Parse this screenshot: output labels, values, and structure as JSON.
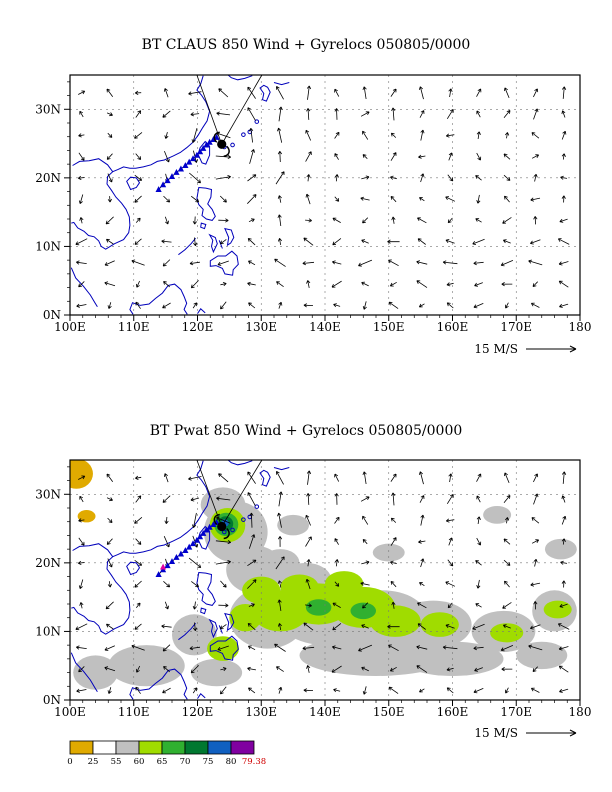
{
  "charts": [
    {
      "title": "BT CLAUS 850 Wind + Gyrelocs 050805/0000",
      "x_tick_labels": [
        "100E",
        "110E",
        "120E",
        "130E",
        "140E",
        "150E",
        "160E",
        "170E",
        "180"
      ],
      "y_tick_labels": [
        "0N",
        "10N",
        "20N",
        "30N"
      ],
      "scale_label": "15 M/S",
      "storm_lonlat": [
        123.8,
        24.9
      ],
      "track_lonlat": [
        [
          113.9,
          18.3
        ],
        [
          114.6,
          19.0
        ],
        [
          115.3,
          19.6
        ],
        [
          116.0,
          20.2
        ],
        [
          116.7,
          20.8
        ],
        [
          117.4,
          21.3
        ],
        [
          118.1,
          21.8
        ],
        [
          118.7,
          22.3
        ],
        [
          119.3,
          22.8
        ],
        [
          119.9,
          23.3
        ],
        [
          120.4,
          23.8
        ],
        [
          120.9,
          24.3
        ],
        [
          121.4,
          24.8
        ],
        [
          121.9,
          25.2
        ],
        [
          122.5,
          25.6
        ],
        [
          123.0,
          25.9
        ]
      ],
      "marker_color": "#0000CC",
      "has_shading": false
    },
    {
      "title": "BT Pwat 850 Wind + Gyrelocs 050805/0000",
      "x_tick_labels": [
        "100E",
        "110E",
        "120E",
        "130E",
        "140E",
        "150E",
        "160E",
        "170E",
        "180"
      ],
      "y_tick_labels": [
        "0N",
        "10N",
        "20N",
        "30N"
      ],
      "scale_label": "15 M/S",
      "storm_lonlat": [
        123.8,
        25.3
      ],
      "track_lonlat": [
        [
          113.9,
          18.3
        ],
        [
          114.6,
          19.0
        ],
        [
          115.3,
          19.6
        ],
        [
          116.0,
          20.2
        ],
        [
          116.7,
          20.8
        ],
        [
          117.4,
          21.3
        ],
        [
          118.1,
          21.8
        ],
        [
          118.7,
          22.3
        ],
        [
          119.3,
          22.8
        ],
        [
          119.9,
          23.3
        ],
        [
          120.4,
          23.8
        ],
        [
          120.9,
          24.3
        ],
        [
          121.4,
          24.8
        ],
        [
          121.9,
          25.2
        ],
        [
          122.5,
          25.6
        ],
        [
          123.0,
          25.9
        ]
      ],
      "marker_color": "#0000CC",
      "gyre_marker_lonlat": [
        114.6,
        19.4
      ],
      "gyre_marker_color": "#E000A0",
      "has_shading": true,
      "colorbar": {
        "labels": [
          "0",
          "25",
          "55",
          "60",
          "65",
          "70",
          "75",
          "80",
          "79.38"
        ],
        "colors": [
          "#E0AA00",
          "#FFFFFF",
          "#C0C0C0",
          "#A0DC00",
          "#30B030",
          "#007830",
          "#1060C0",
          "#8000A0"
        ],
        "max_label_color": "#D00000"
      }
    }
  ],
  "chart_data": [
    {
      "type": "vector-map",
      "title": "BT CLAUS 850 Wind + Gyrelocs 050805/0000",
      "valid_datetime_label": "050805/0000",
      "x_axis": {
        "ticks": [
          "100E",
          "110E",
          "120E",
          "130E",
          "140E",
          "150E",
          "160E",
          "170E",
          "180"
        ],
        "range_deg_east": [
          100,
          180
        ]
      },
      "y_axis": {
        "ticks": [
          "0N",
          "10N",
          "20N",
          "30N"
        ],
        "range_deg_north": [
          0,
          35
        ]
      },
      "reference_vector_label": "15 M/S",
      "storm_position_lon_lat": [
        123.8,
        24.9
      ],
      "best_track_lon_lat": [
        [
          113.9,
          18.3
        ],
        [
          114.6,
          19.0
        ],
        [
          115.3,
          19.6
        ],
        [
          116.0,
          20.2
        ],
        [
          116.7,
          20.8
        ],
        [
          117.4,
          21.3
        ],
        [
          118.1,
          21.8
        ],
        [
          118.7,
          22.3
        ],
        [
          119.3,
          22.8
        ],
        [
          119.9,
          23.3
        ],
        [
          120.4,
          23.8
        ],
        [
          120.9,
          24.3
        ],
        [
          121.4,
          24.8
        ],
        [
          121.9,
          25.2
        ],
        [
          122.5,
          25.6
        ],
        [
          123.0,
          25.9
        ]
      ],
      "graticule": "dashed lines every 10 degrees",
      "coastline_color": "#0000BB"
    },
    {
      "type": "vector-map",
      "title": "BT Pwat 850 Wind + Gyrelocs 050805/0000",
      "valid_datetime_label": "050805/0000",
      "x_axis": {
        "ticks": [
          "100E",
          "110E",
          "120E",
          "130E",
          "140E",
          "150E",
          "160E",
          "170E",
          "180"
        ],
        "range_deg_east": [
          100,
          180
        ]
      },
      "y_axis": {
        "ticks": [
          "0N",
          "10N",
          "20N",
          "30N"
        ],
        "range_deg_north": [
          0,
          35
        ]
      },
      "reference_vector_label": "15 M/S",
      "storm_position_lon_lat": [
        123.8,
        25.3
      ],
      "best_track_lon_lat": [
        [
          113.9,
          18.3
        ],
        [
          114.6,
          19.0
        ],
        [
          115.3,
          19.6
        ],
        [
          116.0,
          20.2
        ],
        [
          116.7,
          20.8
        ],
        [
          117.4,
          21.3
        ],
        [
          118.1,
          21.8
        ],
        [
          118.7,
          22.3
        ],
        [
          119.3,
          22.8
        ],
        [
          119.9,
          23.3
        ],
        [
          120.4,
          23.8
        ],
        [
          120.9,
          24.3
        ],
        [
          121.4,
          24.8
        ],
        [
          121.9,
          25.2
        ],
        [
          122.5,
          25.6
        ],
        [
          123.0,
          25.9
        ]
      ],
      "shading_levels": [
        0,
        25,
        55,
        60,
        65,
        70,
        75,
        80
      ],
      "shading_level_labels": [
        "0",
        "25",
        "55",
        "60",
        "65",
        "70",
        "75",
        "80"
      ],
      "shading_max_value": 79.38,
      "shading_colors": [
        "#E0AA00",
        "#FFFFFF",
        "#C0C0C0",
        "#A0DC00",
        "#30B030",
        "#007830",
        "#1060C0",
        "#8000A0"
      ],
      "graticule": "dashed lines every 10 degrees",
      "coastline_color": "#0000BB"
    }
  ]
}
